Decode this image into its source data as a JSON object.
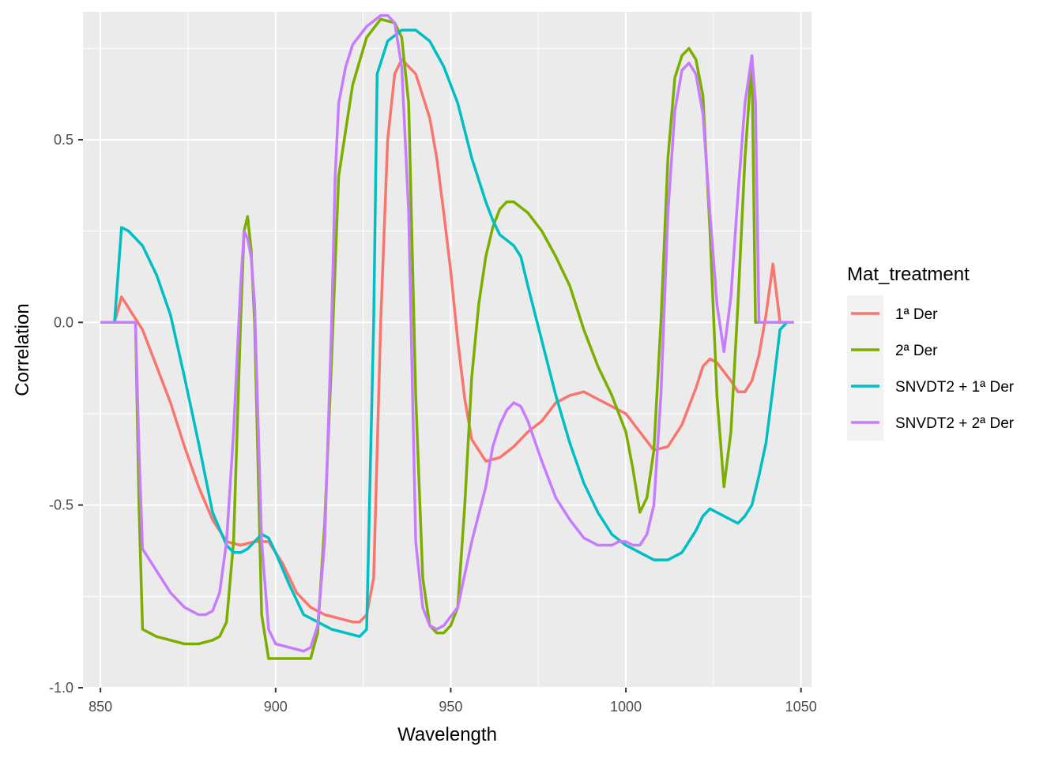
{
  "chart_data": {
    "type": "line",
    "xlabel": "Wavelength",
    "ylabel": "Correlation",
    "xlim": [
      845,
      1053
    ],
    "ylim": [
      -1.0,
      0.85
    ],
    "xticks": [
      850,
      900,
      950,
      1000,
      1050
    ],
    "yticks": [
      -1.0,
      -0.5,
      0.0,
      0.5
    ],
    "xtick_labels": [
      "850",
      "900",
      "950",
      "1000",
      "1050"
    ],
    "ytick_labels": [
      "-1.0",
      "-0.5",
      "0.0",
      "0.5"
    ],
    "grid": true,
    "legend": {
      "title": "Mat_treatment",
      "position": "right"
    },
    "series": [
      {
        "name": "1ª Der",
        "color": "#F8766D",
        "points": [
          [
            854,
            0.0
          ],
          [
            856,
            0.07
          ],
          [
            858,
            0.04
          ],
          [
            862,
            -0.02
          ],
          [
            866,
            -0.12
          ],
          [
            870,
            -0.22
          ],
          [
            874,
            -0.34
          ],
          [
            878,
            -0.45
          ],
          [
            882,
            -0.54
          ],
          [
            886,
            -0.6
          ],
          [
            890,
            -0.61
          ],
          [
            894,
            -0.6
          ],
          [
            898,
            -0.6
          ],
          [
            902,
            -0.66
          ],
          [
            906,
            -0.74
          ],
          [
            910,
            -0.78
          ],
          [
            914,
            -0.8
          ],
          [
            918,
            -0.81
          ],
          [
            922,
            -0.82
          ],
          [
            924,
            -0.82
          ],
          [
            926,
            -0.8
          ],
          [
            928,
            -0.7
          ],
          [
            930,
            0.0
          ],
          [
            932,
            0.5
          ],
          [
            934,
            0.68
          ],
          [
            936,
            0.72
          ],
          [
            938,
            0.7
          ],
          [
            940,
            0.68
          ],
          [
            942,
            0.62
          ],
          [
            944,
            0.56
          ],
          [
            946,
            0.45
          ],
          [
            948,
            0.3
          ],
          [
            950,
            0.14
          ],
          [
            952,
            -0.05
          ],
          [
            954,
            -0.21
          ],
          [
            956,
            -0.32
          ],
          [
            960,
            -0.38
          ],
          [
            964,
            -0.37
          ],
          [
            968,
            -0.34
          ],
          [
            972,
            -0.3
          ],
          [
            976,
            -0.27
          ],
          [
            980,
            -0.22
          ],
          [
            984,
            -0.2
          ],
          [
            988,
            -0.19
          ],
          [
            992,
            -0.21
          ],
          [
            996,
            -0.23
          ],
          [
            1000,
            -0.25
          ],
          [
            1004,
            -0.3
          ],
          [
            1008,
            -0.35
          ],
          [
            1012,
            -0.34
          ],
          [
            1016,
            -0.28
          ],
          [
            1020,
            -0.18
          ],
          [
            1022,
            -0.12
          ],
          [
            1024,
            -0.1
          ],
          [
            1026,
            -0.11
          ],
          [
            1030,
            -0.16
          ],
          [
            1032,
            -0.19
          ],
          [
            1034,
            -0.19
          ],
          [
            1036,
            -0.16
          ],
          [
            1038,
            -0.09
          ],
          [
            1040,
            0.02
          ],
          [
            1042,
            0.16
          ],
          [
            1044,
            0.0
          ]
        ]
      },
      {
        "name": "2ª Der",
        "color": "#7CAE00",
        "points": [
          [
            850,
            0.0
          ],
          [
            854,
            0.0
          ],
          [
            858,
            0.0
          ],
          [
            860,
            0.0
          ],
          [
            861,
            -0.5
          ],
          [
            862,
            -0.84
          ],
          [
            866,
            -0.86
          ],
          [
            870,
            -0.87
          ],
          [
            874,
            -0.88
          ],
          [
            878,
            -0.88
          ],
          [
            882,
            -0.87
          ],
          [
            884,
            -0.86
          ],
          [
            886,
            -0.82
          ],
          [
            888,
            -0.6
          ],
          [
            890,
            0.0
          ],
          [
            891,
            0.25
          ],
          [
            892,
            0.29
          ],
          [
            893,
            0.2
          ],
          [
            894,
            0.0
          ],
          [
            896,
            -0.8
          ],
          [
            898,
            -0.92
          ],
          [
            902,
            -0.92
          ],
          [
            906,
            -0.92
          ],
          [
            908,
            -0.92
          ],
          [
            910,
            -0.92
          ],
          [
            912,
            -0.85
          ],
          [
            914,
            -0.55
          ],
          [
            916,
            -0.1
          ],
          [
            918,
            0.4
          ],
          [
            922,
            0.65
          ],
          [
            926,
            0.78
          ],
          [
            930,
            0.83
          ],
          [
            934,
            0.82
          ],
          [
            936,
            0.78
          ],
          [
            938,
            0.6
          ],
          [
            940,
            -0.2
          ],
          [
            942,
            -0.7
          ],
          [
            944,
            -0.83
          ],
          [
            946,
            -0.85
          ],
          [
            948,
            -0.85
          ],
          [
            950,
            -0.83
          ],
          [
            952,
            -0.78
          ],
          [
            954,
            -0.5
          ],
          [
            956,
            -0.15
          ],
          [
            958,
            0.05
          ],
          [
            960,
            0.18
          ],
          [
            962,
            0.26
          ],
          [
            964,
            0.31
          ],
          [
            966,
            0.33
          ],
          [
            968,
            0.33
          ],
          [
            972,
            0.3
          ],
          [
            976,
            0.25
          ],
          [
            980,
            0.18
          ],
          [
            984,
            0.1
          ],
          [
            988,
            -0.02
          ],
          [
            992,
            -0.12
          ],
          [
            996,
            -0.2
          ],
          [
            1000,
            -0.3
          ],
          [
            1002,
            -0.4
          ],
          [
            1004,
            -0.52
          ],
          [
            1006,
            -0.48
          ],
          [
            1008,
            -0.35
          ],
          [
            1010,
            0.0
          ],
          [
            1012,
            0.45
          ],
          [
            1014,
            0.67
          ],
          [
            1016,
            0.73
          ],
          [
            1018,
            0.75
          ],
          [
            1020,
            0.72
          ],
          [
            1022,
            0.62
          ],
          [
            1024,
            0.25
          ],
          [
            1026,
            -0.2
          ],
          [
            1028,
            -0.45
          ],
          [
            1030,
            -0.3
          ],
          [
            1032,
            0.05
          ],
          [
            1034,
            0.45
          ],
          [
            1036,
            0.72
          ],
          [
            1037,
            0.0
          ],
          [
            1044,
            0.0
          ]
        ]
      },
      {
        "name": "SNVDT2 + 1ª Der",
        "color": "#00BFC4",
        "points": [
          [
            854,
            0.0
          ],
          [
            856,
            0.26
          ],
          [
            858,
            0.25
          ],
          [
            862,
            0.21
          ],
          [
            866,
            0.13
          ],
          [
            870,
            0.02
          ],
          [
            874,
            -0.15
          ],
          [
            878,
            -0.33
          ],
          [
            882,
            -0.52
          ],
          [
            886,
            -0.61
          ],
          [
            888,
            -0.63
          ],
          [
            890,
            -0.63
          ],
          [
            892,
            -0.62
          ],
          [
            894,
            -0.6
          ],
          [
            896,
            -0.58
          ],
          [
            898,
            -0.59
          ],
          [
            900,
            -0.63
          ],
          [
            904,
            -0.72
          ],
          [
            908,
            -0.8
          ],
          [
            912,
            -0.82
          ],
          [
            916,
            -0.84
          ],
          [
            920,
            -0.85
          ],
          [
            924,
            -0.86
          ],
          [
            926,
            -0.84
          ],
          [
            928,
            0.0
          ],
          [
            929,
            0.68
          ],
          [
            932,
            0.77
          ],
          [
            936,
            0.8
          ],
          [
            940,
            0.8
          ],
          [
            944,
            0.77
          ],
          [
            948,
            0.7
          ],
          [
            952,
            0.6
          ],
          [
            956,
            0.45
          ],
          [
            960,
            0.33
          ],
          [
            962,
            0.28
          ],
          [
            964,
            0.24
          ],
          [
            968,
            0.21
          ],
          [
            970,
            0.18
          ],
          [
            972,
            0.1
          ],
          [
            976,
            -0.05
          ],
          [
            980,
            -0.2
          ],
          [
            984,
            -0.33
          ],
          [
            988,
            -0.44
          ],
          [
            992,
            -0.52
          ],
          [
            996,
            -0.58
          ],
          [
            1000,
            -0.61
          ],
          [
            1004,
            -0.63
          ],
          [
            1008,
            -0.65
          ],
          [
            1012,
            -0.65
          ],
          [
            1016,
            -0.63
          ],
          [
            1020,
            -0.57
          ],
          [
            1022,
            -0.53
          ],
          [
            1024,
            -0.51
          ],
          [
            1026,
            -0.52
          ],
          [
            1030,
            -0.54
          ],
          [
            1032,
            -0.55
          ],
          [
            1034,
            -0.53
          ],
          [
            1036,
            -0.5
          ],
          [
            1038,
            -0.42
          ],
          [
            1040,
            -0.33
          ],
          [
            1042,
            -0.18
          ],
          [
            1044,
            -0.02
          ],
          [
            1046,
            0.0
          ]
        ]
      },
      {
        "name": "SNVDT2 + 2ª Der",
        "color": "#C77CFF",
        "points": [
          [
            850,
            0.0
          ],
          [
            854,
            0.0
          ],
          [
            858,
            0.0
          ],
          [
            860,
            0.0
          ],
          [
            861,
            -0.35
          ],
          [
            862,
            -0.62
          ],
          [
            866,
            -0.68
          ],
          [
            870,
            -0.74
          ],
          [
            874,
            -0.78
          ],
          [
            878,
            -0.8
          ],
          [
            880,
            -0.8
          ],
          [
            882,
            -0.79
          ],
          [
            884,
            -0.74
          ],
          [
            886,
            -0.6
          ],
          [
            888,
            -0.3
          ],
          [
            890,
            0.1
          ],
          [
            891,
            0.25
          ],
          [
            892,
            0.23
          ],
          [
            893,
            0.18
          ],
          [
            894,
            0.05
          ],
          [
            896,
            -0.6
          ],
          [
            898,
            -0.84
          ],
          [
            900,
            -0.88
          ],
          [
            904,
            -0.89
          ],
          [
            908,
            -0.9
          ],
          [
            910,
            -0.89
          ],
          [
            912,
            -0.83
          ],
          [
            914,
            -0.6
          ],
          [
            916,
            0.0
          ],
          [
            917,
            0.4
          ],
          [
            918,
            0.6
          ],
          [
            920,
            0.7
          ],
          [
            922,
            0.76
          ],
          [
            926,
            0.81
          ],
          [
            930,
            0.84
          ],
          [
            932,
            0.84
          ],
          [
            934,
            0.82
          ],
          [
            936,
            0.7
          ],
          [
            938,
            0.3
          ],
          [
            940,
            -0.6
          ],
          [
            942,
            -0.78
          ],
          [
            944,
            -0.83
          ],
          [
            946,
            -0.84
          ],
          [
            948,
            -0.83
          ],
          [
            952,
            -0.78
          ],
          [
            956,
            -0.6
          ],
          [
            960,
            -0.45
          ],
          [
            962,
            -0.34
          ],
          [
            964,
            -0.28
          ],
          [
            966,
            -0.24
          ],
          [
            968,
            -0.22
          ],
          [
            970,
            -0.23
          ],
          [
            972,
            -0.27
          ],
          [
            976,
            -0.38
          ],
          [
            980,
            -0.48
          ],
          [
            984,
            -0.54
          ],
          [
            988,
            -0.59
          ],
          [
            992,
            -0.61
          ],
          [
            996,
            -0.61
          ],
          [
            998,
            -0.6
          ],
          [
            1000,
            -0.6
          ],
          [
            1002,
            -0.61
          ],
          [
            1004,
            -0.61
          ],
          [
            1006,
            -0.58
          ],
          [
            1008,
            -0.5
          ],
          [
            1010,
            -0.2
          ],
          [
            1012,
            0.3
          ],
          [
            1014,
            0.58
          ],
          [
            1016,
            0.69
          ],
          [
            1018,
            0.71
          ],
          [
            1020,
            0.68
          ],
          [
            1022,
            0.57
          ],
          [
            1024,
            0.3
          ],
          [
            1026,
            0.05
          ],
          [
            1028,
            -0.08
          ],
          [
            1030,
            0.07
          ],
          [
            1032,
            0.35
          ],
          [
            1034,
            0.6
          ],
          [
            1036,
            0.73
          ],
          [
            1037,
            0.6
          ],
          [
            1038,
            0.0
          ],
          [
            1044,
            0.0
          ],
          [
            1048,
            0.0
          ]
        ]
      }
    ]
  }
}
